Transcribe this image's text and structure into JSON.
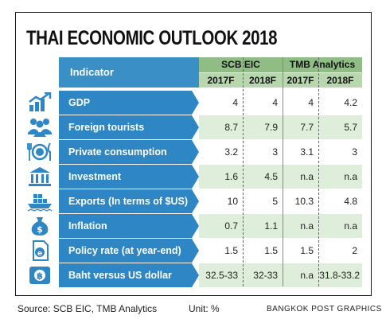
{
  "title": "THAI ECONOMIC OUTLOOK 2018",
  "header": {
    "indicator": "Indicator",
    "groups": [
      "SCB EIC",
      "TMB Analytics"
    ],
    "years": [
      "2017F",
      "2018F",
      "2017F",
      "2018F"
    ]
  },
  "rows": [
    {
      "label": "GDP",
      "icon": "bar-chart-growth-icon",
      "values": [
        "4",
        "4",
        "4",
        "4.2"
      ]
    },
    {
      "label": "Foreign tourists",
      "icon": "people-group-icon",
      "values": [
        "8.7",
        "7.9",
        "7.7",
        "5.7"
      ]
    },
    {
      "label": "Private consumption",
      "icon": "plate-fork-knife-icon",
      "values": [
        "3.2",
        "3",
        "3.1",
        "3"
      ]
    },
    {
      "label": "Investment",
      "icon": "bank-building-icon",
      "values": [
        "1.6",
        "4.5",
        "n.a",
        "n.a"
      ]
    },
    {
      "label": "Exports (In terms of $US)",
      "icon": "cargo-ship-icon",
      "values": [
        "10",
        "5",
        "10.3",
        "4.8"
      ]
    },
    {
      "label": "Inflation",
      "icon": "money-bag-icon",
      "values": [
        "0.7",
        "1.1",
        "n.a",
        "n.a"
      ]
    },
    {
      "label": "Policy rate (at year-end)",
      "icon": "document-e-icon",
      "values": [
        "1.5",
        "1.5",
        "1.5",
        "2"
      ]
    },
    {
      "label": "Baht versus US dollar",
      "icon": "baht-coin-icon",
      "values": [
        "32.5-33",
        "32-33",
        "n.a",
        "31.8-33.2"
      ]
    }
  ],
  "footer": {
    "source": "Source: SCB EIC, TMB Analytics",
    "unit": "Unit: %",
    "credit": "BANGKOK POST GRAPHICS"
  },
  "colors": {
    "label_blue": "#2f86c4",
    "header_green": "#8fbd85",
    "row_green": "#dfeeda",
    "icon_blue": "#2f86c4"
  }
}
